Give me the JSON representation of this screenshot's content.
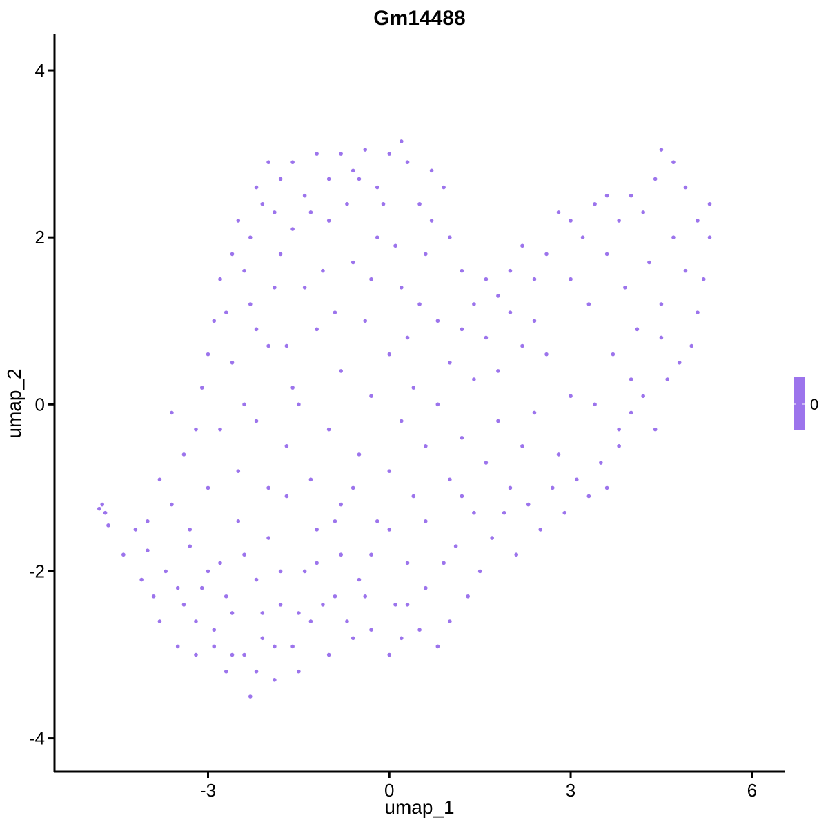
{
  "chart_data": {
    "type": "scatter",
    "title": "Gm14488",
    "xlabel": "umap_1",
    "ylabel": "umap_2",
    "xlim": [
      -5.54,
      6.55
    ],
    "ylim": [
      -4.4,
      4.43
    ],
    "xticks": [
      -3,
      0,
      3,
      6
    ],
    "yticks": [
      -4,
      -2,
      0,
      2,
      4
    ],
    "grid": false,
    "point_color": "#9c74ec",
    "legend": {
      "placement": "right",
      "type": "colorbar",
      "labels": [
        "0"
      ],
      "color": "#9c74ec"
    },
    "points": [
      [
        -4.75,
        -1.2
      ],
      [
        -4.7,
        -1.3
      ],
      [
        -4.65,
        -1.45
      ],
      [
        -4.8,
        -1.25
      ],
      [
        -4.4,
        -1.8
      ],
      [
        -4.2,
        -1.5
      ],
      [
        -4.1,
        -2.1
      ],
      [
        -4.0,
        -1.75
      ],
      [
        -3.9,
        -2.3
      ],
      [
        -3.8,
        -2.6
      ],
      [
        -3.7,
        -2.0
      ],
      [
        -3.6,
        -1.2
      ],
      [
        -3.5,
        -2.9
      ],
      [
        -3.4,
        -2.4
      ],
      [
        -3.3,
        -1.7
      ],
      [
        -3.2,
        -3.0
      ],
      [
        -3.1,
        -2.2
      ],
      [
        -3.0,
        -1.0
      ],
      [
        -2.9,
        -2.7
      ],
      [
        -2.8,
        -1.9
      ],
      [
        -2.7,
        -3.2
      ],
      [
        -2.6,
        -2.5
      ],
      [
        -2.5,
        -1.4
      ],
      [
        -2.4,
        -3.0
      ],
      [
        -2.3,
        -3.5
      ],
      [
        -2.2,
        -2.1
      ],
      [
        -2.1,
        -2.8
      ],
      [
        -2.0,
        -1.6
      ],
      [
        -1.9,
        -3.3
      ],
      [
        -1.8,
        -2.4
      ],
      [
        -1.7,
        -1.1
      ],
      [
        -1.6,
        -2.9
      ],
      [
        -1.5,
        -3.2
      ],
      [
        -1.4,
        -2.0
      ],
      [
        -1.3,
        -2.6
      ],
      [
        -1.2,
        -1.5
      ],
      [
        -1.0,
        -3.0
      ],
      [
        -0.9,
        -2.3
      ],
      [
        -0.8,
        -1.8
      ],
      [
        -0.6,
        -2.8
      ],
      [
        -0.5,
        -2.1
      ],
      [
        -0.3,
        -2.7
      ],
      [
        -0.2,
        -1.4
      ],
      [
        0.0,
        -3.0
      ],
      [
        0.1,
        -2.4
      ],
      [
        0.3,
        -1.9
      ],
      [
        0.5,
        -2.7
      ],
      [
        0.6,
        -2.2
      ],
      [
        0.8,
        -2.9
      ],
      [
        1.0,
        -2.6
      ],
      [
        1.1,
        -1.7
      ],
      [
        1.3,
        -2.3
      ],
      [
        1.5,
        -2.0
      ],
      [
        1.7,
        -1.6
      ],
      [
        1.9,
        -1.3
      ],
      [
        2.1,
        -1.8
      ],
      [
        2.3,
        -1.2
      ],
      [
        2.5,
        -1.5
      ],
      [
        2.7,
        -1.0
      ],
      [
        2.9,
        -1.3
      ],
      [
        3.1,
        -0.9
      ],
      [
        3.3,
        -1.1
      ],
      [
        3.5,
        -0.7
      ],
      [
        3.6,
        -1.0
      ],
      [
        3.8,
        -0.3
      ],
      [
        4.0,
        -0.1
      ],
      [
        4.2,
        0.1
      ],
      [
        4.4,
        -0.3
      ],
      [
        4.6,
        0.3
      ],
      [
        4.8,
        0.5
      ],
      [
        5.0,
        0.7
      ],
      [
        5.1,
        1.1
      ],
      [
        5.2,
        1.5
      ],
      [
        5.3,
        2.0
      ],
      [
        5.3,
        2.4
      ],
      [
        5.1,
        2.2
      ],
      [
        4.9,
        2.6
      ],
      [
        4.7,
        2.9
      ],
      [
        4.5,
        3.05
      ],
      [
        4.4,
        2.7
      ],
      [
        4.2,
        2.3
      ],
      [
        4.0,
        2.5
      ],
      [
        3.8,
        2.2
      ],
      [
        3.6,
        2.5
      ],
      [
        3.4,
        2.4
      ],
      [
        3.2,
        2.0
      ],
      [
        3.0,
        2.2
      ],
      [
        2.8,
        2.3
      ],
      [
        2.6,
        1.8
      ],
      [
        2.4,
        1.5
      ],
      [
        2.2,
        1.9
      ],
      [
        2.0,
        1.6
      ],
      [
        1.8,
        1.3
      ],
      [
        1.6,
        1.5
      ],
      [
        1.4,
        1.2
      ],
      [
        1.2,
        1.6
      ],
      [
        1.0,
        2.0
      ],
      [
        0.9,
        2.6
      ],
      [
        0.7,
        2.8
      ],
      [
        0.5,
        2.4
      ],
      [
        0.3,
        2.9
      ],
      [
        0.2,
        3.15
      ],
      [
        0.0,
        3.0
      ],
      [
        -0.2,
        2.6
      ],
      [
        -0.4,
        3.05
      ],
      [
        -0.6,
        2.8
      ],
      [
        -0.8,
        3.0
      ],
      [
        -1.0,
        2.7
      ],
      [
        -1.2,
        3.0
      ],
      [
        -1.4,
        2.5
      ],
      [
        -1.6,
        2.9
      ],
      [
        -1.8,
        2.7
      ],
      [
        -2.0,
        2.9
      ],
      [
        -2.1,
        2.4
      ],
      [
        -2.3,
        2.0
      ],
      [
        -2.5,
        2.2
      ],
      [
        -2.6,
        1.8
      ],
      [
        -2.8,
        1.5
      ],
      [
        -2.9,
        1.0
      ],
      [
        -3.0,
        0.6
      ],
      [
        -3.1,
        0.2
      ],
      [
        -3.2,
        -0.3
      ],
      [
        -3.4,
        -0.6
      ],
      [
        -3.6,
        -0.1
      ],
      [
        -3.8,
        -0.9
      ],
      [
        -4.0,
        -1.4
      ],
      [
        -2.6,
        0.5
      ],
      [
        -2.3,
        1.2
      ],
      [
        -2.0,
        0.7
      ],
      [
        -1.8,
        1.8
      ],
      [
        -1.6,
        0.2
      ],
      [
        -1.4,
        1.4
      ],
      [
        -1.2,
        0.9
      ],
      [
        -1.0,
        2.2
      ],
      [
        -0.8,
        0.4
      ],
      [
        -0.6,
        1.7
      ],
      [
        -0.4,
        1.0
      ],
      [
        -0.2,
        2.0
      ],
      [
        0.0,
        0.6
      ],
      [
        0.2,
        1.4
      ],
      [
        0.4,
        0.2
      ],
      [
        0.6,
        1.8
      ],
      [
        0.8,
        1.0
      ],
      [
        1.0,
        0.5
      ],
      [
        1.2,
        0.9
      ],
      [
        1.4,
        0.3
      ],
      [
        1.6,
        0.8
      ],
      [
        1.8,
        0.4
      ],
      [
        2.0,
        1.1
      ],
      [
        2.2,
        0.7
      ],
      [
        2.4,
        1.0
      ],
      [
        2.6,
        0.6
      ],
      [
        3.0,
        1.5
      ],
      [
        3.3,
        1.2
      ],
      [
        3.6,
        1.8
      ],
      [
        3.9,
        1.4
      ],
      [
        4.1,
        0.9
      ],
      [
        4.3,
        1.7
      ],
      [
        4.5,
        1.2
      ],
      [
        4.7,
        2.0
      ],
      [
        4.9,
        1.6
      ],
      [
        3.7,
        0.6
      ],
      [
        4.0,
        0.3
      ],
      [
        4.5,
        0.8
      ],
      [
        3.4,
        0.0
      ],
      [
        3.8,
        -0.5
      ],
      [
        -2.8,
        -0.3
      ],
      [
        -2.5,
        -0.8
      ],
      [
        -2.2,
        -0.2
      ],
      [
        -2.0,
        -1.0
      ],
      [
        -1.7,
        -0.5
      ],
      [
        -1.5,
        0.0
      ],
      [
        -1.3,
        -0.9
      ],
      [
        -1.0,
        -0.3
      ],
      [
        -0.8,
        -1.2
      ],
      [
        -0.5,
        -0.6
      ],
      [
        -0.3,
        0.1
      ],
      [
        0.0,
        -0.8
      ],
      [
        0.2,
        -0.2
      ],
      [
        0.4,
        -1.1
      ],
      [
        0.6,
        -0.5
      ],
      [
        0.8,
        0.0
      ],
      [
        1.0,
        -0.9
      ],
      [
        1.2,
        -0.4
      ],
      [
        1.4,
        -1.3
      ],
      [
        1.6,
        -0.7
      ],
      [
        1.8,
        -0.2
      ],
      [
        2.0,
        -1.0
      ],
      [
        2.2,
        -0.5
      ],
      [
        2.4,
        -0.1
      ],
      [
        2.8,
        -0.6
      ],
      [
        3.0,
        0.1
      ],
      [
        -3.3,
        -1.5
      ],
      [
        -3.0,
        -2.0
      ],
      [
        -2.7,
        -2.3
      ],
      [
        -2.4,
        -1.8
      ],
      [
        -2.1,
        -2.5
      ],
      [
        -1.8,
        -2.0
      ],
      [
        -1.5,
        -2.5
      ],
      [
        -1.2,
        -1.9
      ],
      [
        -0.9,
        -1.4
      ],
      [
        -0.6,
        -1.0
      ],
      [
        -0.3,
        -1.8
      ],
      [
        0.0,
        -1.5
      ],
      [
        0.3,
        -2.4
      ],
      [
        0.6,
        -1.4
      ],
      [
        0.9,
        -1.9
      ],
      [
        1.2,
        -1.1
      ],
      [
        -3.5,
        -2.2
      ],
      [
        -3.2,
        -2.6
      ],
      [
        -2.9,
        -2.9
      ],
      [
        -2.6,
        -3.0
      ],
      [
        -2.2,
        -3.2
      ],
      [
        -1.9,
        -2.9
      ],
      [
        -1.1,
        -2.4
      ],
      [
        -0.7,
        -2.6
      ],
      [
        -0.4,
        -2.3
      ],
      [
        0.2,
        -2.8
      ],
      [
        -2.4,
        0.0
      ],
      [
        -2.2,
        0.9
      ],
      [
        -1.9,
        1.4
      ],
      [
        -1.6,
        2.1
      ],
      [
        -1.3,
        2.3
      ],
      [
        -1.1,
        1.6
      ],
      [
        -0.9,
        1.1
      ],
      [
        -0.7,
        2.4
      ],
      [
        -0.5,
        2.7
      ],
      [
        -0.3,
        1.5
      ],
      [
        -0.1,
        2.4
      ],
      [
        0.1,
        1.9
      ],
      [
        0.3,
        0.8
      ],
      [
        0.5,
        1.2
      ],
      [
        0.7,
        2.2
      ],
      [
        -2.7,
        1.1
      ],
      [
        -2.4,
        1.6
      ],
      [
        -2.2,
        2.6
      ],
      [
        -1.9,
        2.3
      ],
      [
        -1.7,
        0.7
      ]
    ]
  }
}
